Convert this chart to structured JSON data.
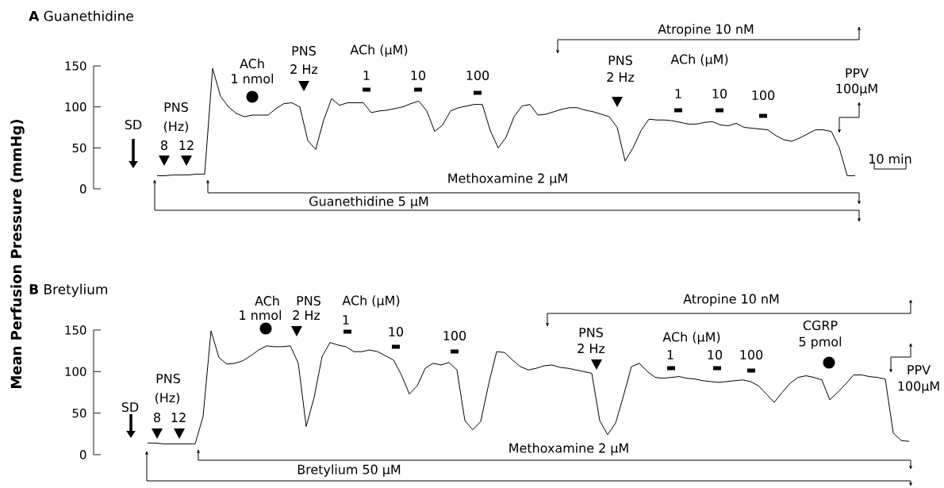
{
  "chart_data": [
    {
      "type": "line",
      "title": "**A** Guanethidine",
      "ylabel": "Mean Perfusion Pressure (mmHg)",
      "categories": [
        null,
        null,
        null,
        null,
        null,
        null,
        null,
        null,
        null,
        null,
        null,
        null,
        null,
        null,
        null,
        null,
        null,
        null,
        null,
        null,
        null,
        null,
        null,
        null,
        null,
        null,
        null,
        null,
        null,
        null,
        null,
        null,
        null,
        null,
        null,
        null,
        null,
        null,
        null,
        null,
        null,
        null,
        null,
        null,
        null,
        null,
        null,
        null,
        null,
        null,
        null,
        null,
        null,
        null,
        null,
        null,
        null,
        null,
        null,
        null,
        null,
        null,
        null,
        null,
        null,
        null,
        null,
        null,
        null,
        null,
        null,
        null,
        null,
        null,
        null,
        null,
        null,
        null,
        null,
        null,
        null,
        null,
        null,
        null,
        null,
        null,
        null,
        null,
        null
      ],
      "values": [
        16,
        16,
        17,
        17,
        17,
        18,
        18,
        147,
        113,
        100,
        92,
        88,
        90,
        90,
        90,
        98,
        104,
        105,
        100,
        59,
        48,
        84,
        110,
        102,
        105,
        105,
        105,
        93,
        95,
        96,
        98,
        100,
        104,
        107,
        95,
        70,
        78,
        95,
        99,
        101,
        103,
        103,
        71,
        50,
        63,
        88,
        101,
        103,
        90,
        91,
        94,
        97,
        99,
        99,
        96,
        94,
        91,
        88,
        75,
        34,
        50,
        71,
        85,
        84,
        84,
        83,
        81,
        79,
        79,
        81,
        82,
        78,
        77,
        80,
        75,
        74,
        73,
        72,
        65,
        60,
        58,
        62,
        67,
        72,
        72,
        70,
        50,
        16,
        16
      ],
      "color": "#000000",
      "ylim": [
        0,
        150
      ],
      "yticks": [
        0,
        50,
        100,
        150
      ],
      "tick_labels": "y",
      "annotations": [
        "SD",
        "PNS",
        "(Hz)",
        "8",
        "12",
        "ACh",
        "1 nmol",
        "PNS",
        "2 Hz",
        "ACh (μM)",
        "1",
        "10",
        "100",
        "PNS",
        "2 Hz",
        "ACh (μM)",
        "1",
        "10",
        "100",
        "PPV",
        "100μM",
        "Atropine 10 nM",
        "Methoxamine 2 μM",
        "Guanethidine 5 μM",
        "10 min"
      ]
    },
    {
      "type": "line",
      "title": "**B** Bretylium",
      "categories": [
        null,
        null,
        null,
        null,
        null,
        null,
        null,
        null,
        null,
        null,
        null,
        null,
        null,
        null,
        null,
        null,
        null,
        null,
        null,
        null,
        null,
        null,
        null,
        null,
        null,
        null,
        null,
        null,
        null,
        null,
        null,
        null,
        null,
        null,
        null,
        null,
        null,
        null,
        null,
        null,
        null,
        null,
        null,
        null,
        null,
        null,
        null,
        null,
        null,
        null,
        null,
        null,
        null,
        null,
        null,
        null,
        null,
        null,
        null,
        null,
        null,
        null,
        null,
        null,
        null,
        null,
        null,
        null,
        null,
        null,
        null,
        null,
        null,
        null,
        null,
        null,
        null,
        null,
        null,
        null,
        null,
        null,
        null,
        null,
        null,
        null,
        null,
        null,
        null,
        null,
        null,
        null,
        null,
        null,
        null,
        null,
        null
      ],
      "values": [
        14,
        14,
        13,
        13,
        13,
        13,
        13,
        46,
        149,
        117,
        109,
        110,
        113,
        119,
        126,
        131,
        130,
        130,
        131,
        110,
        34,
        69,
        118,
        135,
        132,
        130,
        124,
        124,
        126,
        124,
        119,
        114,
        96,
        73,
        83,
        104,
        110,
        108,
        111,
        102,
        41,
        30,
        40,
        85,
        124,
        123,
        114,
        106,
        102,
        104,
        107,
        108,
        105,
        104,
        102,
        100,
        98,
        41,
        24,
        38,
        71,
        106,
        110,
        100,
        93,
        92,
        93,
        94,
        92,
        91,
        89,
        88,
        87,
        88,
        89,
        90,
        88,
        83,
        73,
        63,
        75,
        86,
        93,
        95,
        93,
        90,
        66,
        75,
        85,
        96,
        96,
        94,
        93,
        91,
        26,
        17,
        16
      ],
      "color": "#000000",
      "ylim": [
        0,
        150
      ],
      "yticks": [
        0,
        50,
        100,
        150
      ],
      "tick_labels": "y",
      "annotations": [
        "SD",
        "PNS",
        "(Hz)",
        "8",
        "12",
        "ACh",
        "1 nmol",
        "PNS",
        "2 Hz",
        "ACh (μM)",
        "1",
        "10",
        "100",
        "PNS",
        "2 Hz",
        "ACh (μM)",
        "1",
        "10",
        "100",
        "CGRP",
        "5 pmol",
        "PPV",
        "100μM",
        "Atropine 10 nM",
        "Methoxamine 2 μM",
        "Bretylium 50 μM"
      ]
    }
  ]
}
